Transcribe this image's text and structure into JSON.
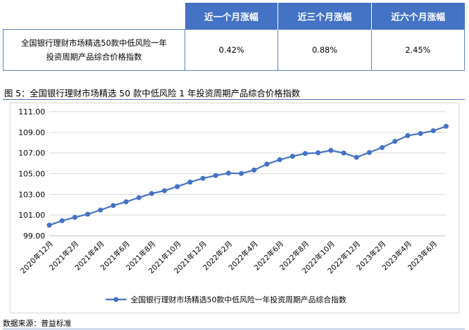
{
  "table": {
    "headers": [
      "",
      "近一个月涨幅",
      "近三个月涨幅",
      "近六个月涨幅"
    ],
    "row": {
      "name_line1": "全国银行理财市场精选50款中低风险一年",
      "name_line2": "投资周期产品综合价格指数",
      "values": [
        "0.42%",
        "0.88%",
        "2.45%"
      ]
    }
  },
  "figure": {
    "title": "图 5：全国银行理财市场精选 50 款中低风险 1 年投资周期产品综合价格指数"
  },
  "source": "数据来源：普益标准",
  "colors": {
    "series": "#4472c4",
    "header_bg": "#4472c4",
    "grid": "#d9d9d9"
  },
  "chart_data": {
    "type": "line",
    "title": "",
    "xlabel": "",
    "ylabel": "",
    "ylim": [
      99.0,
      111.0
    ],
    "yticks": [
      "99.00",
      "101.00",
      "103.00",
      "105.00",
      "107.00",
      "109.00",
      "111.00"
    ],
    "grid": true,
    "legend": "bottom",
    "x": [
      "2020年12月",
      "2021年1月",
      "2021年2月",
      "2021年3月",
      "2021年4月",
      "2021年5月",
      "2021年6月",
      "2021年7月",
      "2021年8月",
      "2021年9月",
      "2021年10月",
      "2021年11月",
      "2021年12月",
      "2022年1月",
      "2022年2月",
      "2022年3月",
      "2022年4月",
      "2022年5月",
      "2022年6月",
      "2022年7月",
      "2022年8月",
      "2022年9月",
      "2022年10月",
      "2022年11月",
      "2022年12月",
      "2023年1月",
      "2023年2月",
      "2023年3月",
      "2023年4月",
      "2023年5月",
      "2023年6月",
      "2023年7月"
    ],
    "xtick_labels": [
      "2020年12月",
      "2021年2月",
      "2021年4月",
      "2021年6月",
      "2021年8月",
      "2021年10月",
      "2021年12月",
      "2022年2月",
      "2022年4月",
      "2022年6月",
      "2022年8月",
      "2022年10月",
      "2022年12月",
      "2023年2月",
      "2023年4月",
      "2023年6月"
    ],
    "series": [
      {
        "name": "全国银行理财市场精选50款中低风险一年投资周期产品综合指数",
        "values": [
          100.02,
          100.45,
          100.78,
          101.08,
          101.48,
          101.92,
          102.28,
          102.68,
          103.08,
          103.35,
          103.75,
          104.18,
          104.55,
          104.82,
          105.05,
          105.02,
          105.35,
          105.92,
          106.35,
          106.68,
          106.95,
          107.02,
          107.25,
          107.0,
          106.58,
          107.05,
          107.52,
          108.12,
          108.68,
          108.88,
          109.15,
          109.58
        ]
      }
    ]
  }
}
